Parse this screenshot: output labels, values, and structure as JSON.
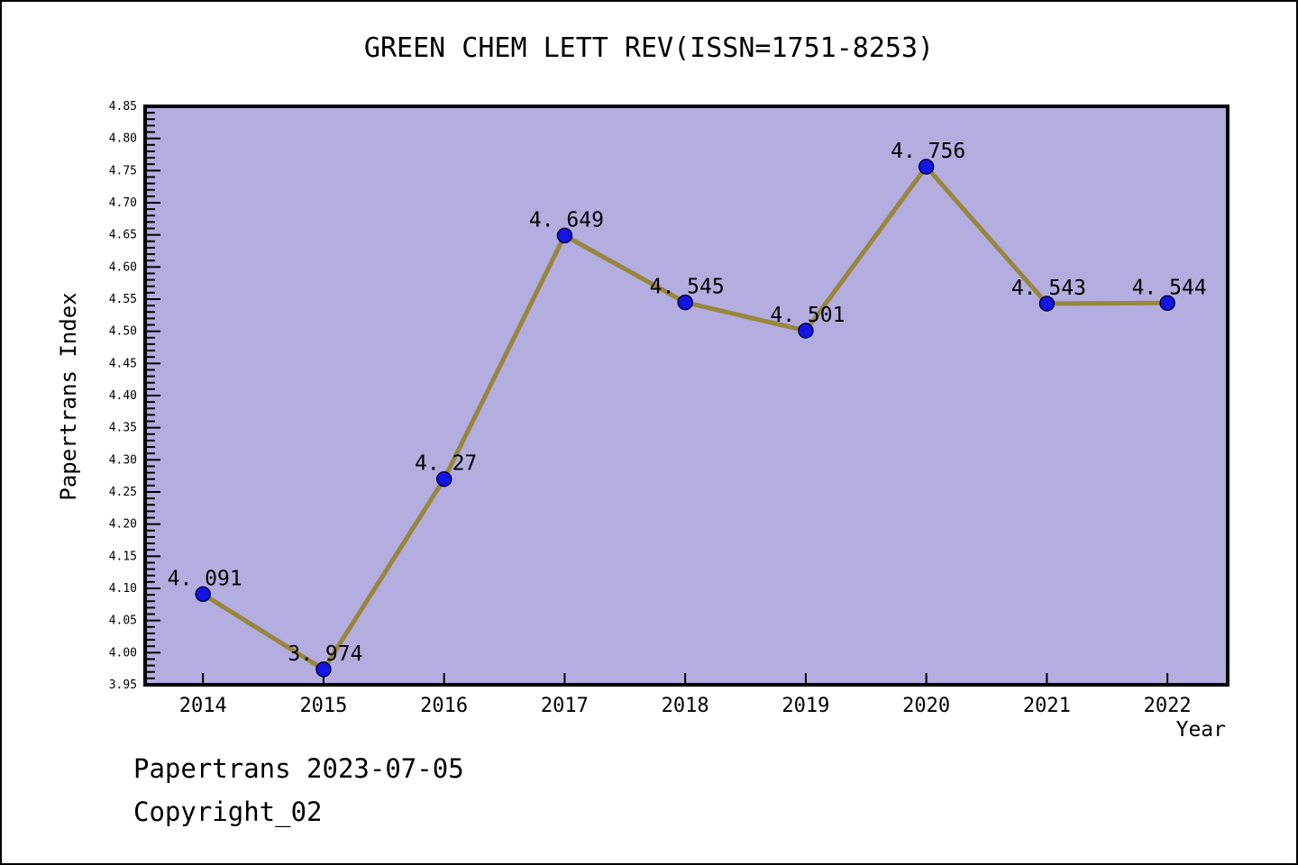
{
  "footer": {
    "source_line": "Papertrans 2023-07-05",
    "copyright_line": "Copyright_02"
  },
  "chart_data": {
    "type": "line",
    "title": "GREEN CHEM LETT REV(ISSN=1751-8253)",
    "xlabel": "Year",
    "ylabel": "Papertrans Index",
    "x": [
      2014,
      2015,
      2016,
      2017,
      2018,
      2019,
      2020,
      2021,
      2022
    ],
    "values": [
      4.091,
      3.974,
      4.27,
      4.649,
      4.545,
      4.501,
      4.756,
      4.543,
      4.544
    ],
    "point_labels": [
      "4. 091",
      "3. 974",
      "4. 27",
      "4. 649",
      "4. 545",
      "4. 501",
      "4. 756",
      "4. 543",
      "4. 544"
    ],
    "xlim": [
      2013.52,
      2022.5
    ],
    "ylim": [
      3.95,
      4.85
    ],
    "y_major_step": 0.05,
    "y_minor_step": 0.01,
    "grid": false,
    "legend": "none",
    "colors": {
      "line": "#97873c",
      "marker": "#1414e6",
      "marker_edge": "#000040",
      "plot_bg": "#b3ade0",
      "axis": "#000000",
      "point_label": "#1a1a1a"
    }
  }
}
